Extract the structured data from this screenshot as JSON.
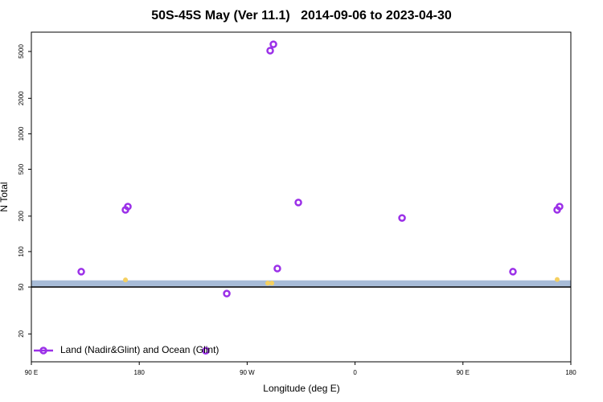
{
  "chart_data": {
    "type": "scatter",
    "title": "50S-45S May (Ver 11.1)   2014-09-06 to 2023-04-30",
    "x_label": "Longitude (deg E)",
    "y_label": "N Total",
    "log_y": true,
    "xlim": [
      90,
      540
    ],
    "xticks": [
      {
        "value": 90,
        "label": "90 E"
      },
      {
        "value": 180,
        "label": "180"
      },
      {
        "value": 270,
        "label": "90 W"
      },
      {
        "value": 360,
        "label": "0"
      },
      {
        "value": 450,
        "label": "90 E"
      },
      {
        "value": 540,
        "label": "180"
      }
    ],
    "ylim": [
      11.6,
      7290
    ],
    "yticks": [
      20,
      50,
      100,
      200,
      500,
      1000,
      2000,
      5000
    ],
    "band": {
      "range": [
        50,
        57
      ],
      "color": "#a8bcd8"
    },
    "hline": 50,
    "legend": "lower left",
    "series": [
      {
        "name": "Land (Nadir&Glint) and Ocean (Glint)",
        "color": "#9b30e8",
        "x": [
          131.6,
          168.5,
          170.5,
          289.2,
          291.9,
          295.2,
          312.7,
          253,
          235.5,
          399.2,
          491.7,
          528.6,
          530.6
        ],
        "values": [
          67.5,
          226,
          241,
          5080,
          5750,
          71.8,
          261,
          44,
          14.4,
          193,
          67.5,
          226,
          241
        ]
      },
      {
        "color": "#f5d060",
        "x": [
          168.5,
          287.2,
          290.6,
          528.6
        ],
        "values": [
          57.5,
          54,
          54,
          58
        ]
      }
    ]
  }
}
